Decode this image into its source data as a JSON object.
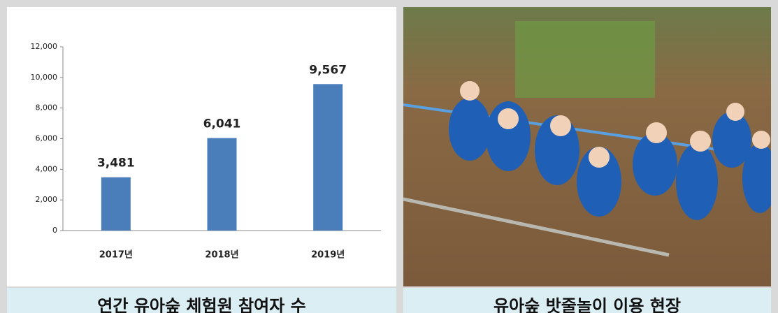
{
  "chart_data": {
    "type": "bar",
    "categories": [
      "2017년",
      "2018년",
      "2019년"
    ],
    "values": [
      3481,
      6041,
      9567
    ],
    "value_labels": [
      "3,481",
      "6,041",
      "9,567"
    ],
    "color": "#4a7ebb",
    "ylim": [
      0,
      12000
    ],
    "yticks": [
      0,
      {
        "value": 2000,
        "label": "2,000"
      },
      {
        "value": 4000,
        "label": "4,000"
      },
      {
        "value": 6000,
        "label": "6,000"
      },
      {
        "value": 8000,
        "label": "8,000"
      },
      {
        "value": 10000,
        "label": "10,000"
      },
      {
        "value": 12000,
        "label": "12,000"
      }
    ],
    "grid": false
  },
  "captions": [
    "연간 유아숲 체험원 참여자 수",
    "유아숲 밧줄놀이 이용 현장"
  ]
}
